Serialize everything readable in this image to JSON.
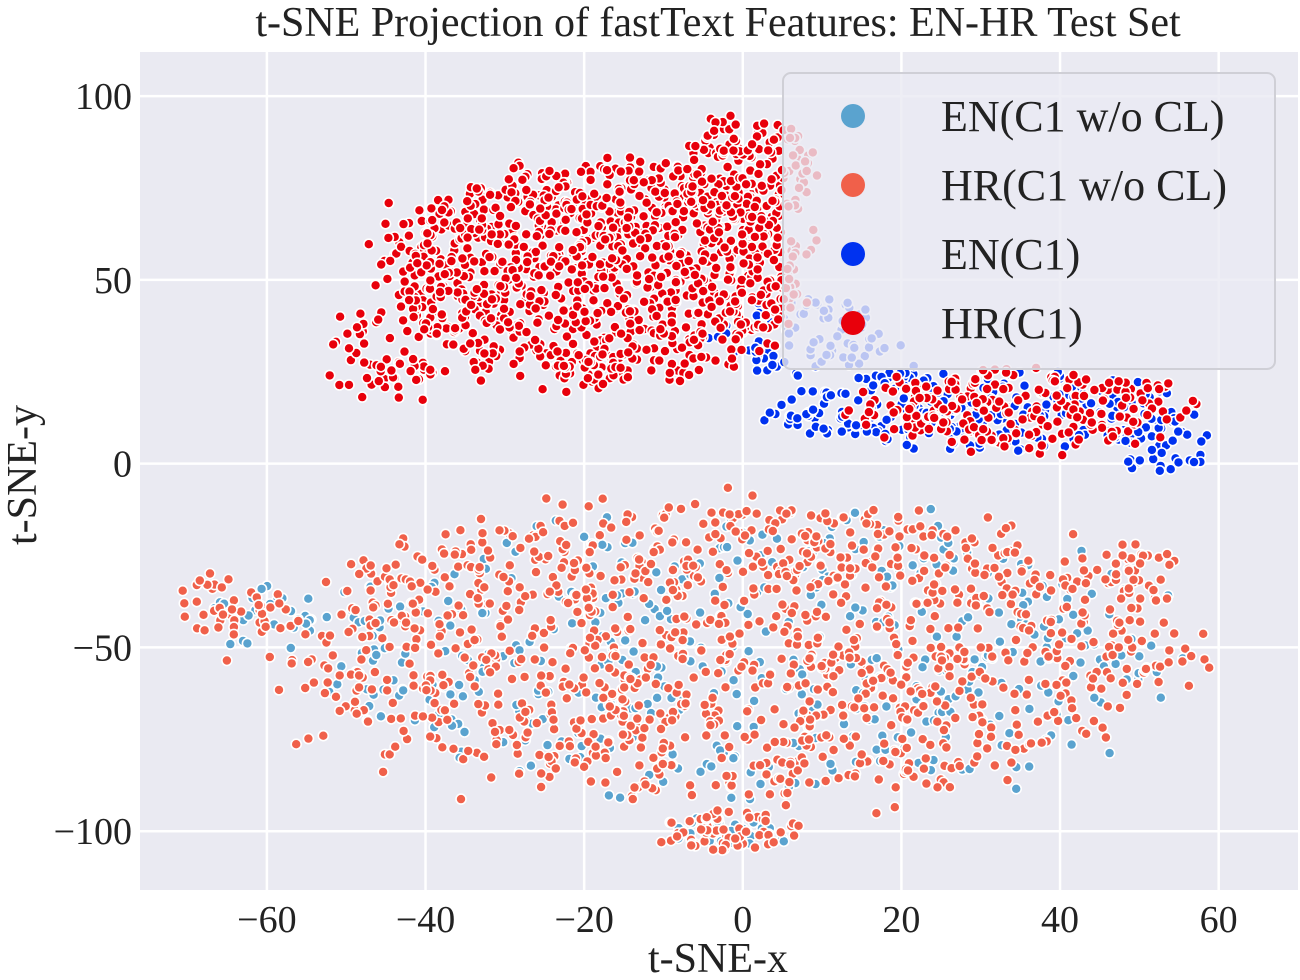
{
  "chart_data": {
    "type": "scatter",
    "title": "t-SNE Projection of fastText Features: EN-HR Test Set",
    "xlabel": "t-SNE-x",
    "ylabel": "t-SNE-y",
    "xlim": [
      -76,
      70
    ],
    "ylim": [
      -116,
      112
    ],
    "xticks": [
      -60,
      -40,
      -20,
      0,
      20,
      40,
      60
    ],
    "yticks": [
      -100,
      -50,
      0,
      50,
      100
    ],
    "xtick_labels": [
      "−60",
      "−40",
      "−20",
      "0",
      "20",
      "40",
      "60"
    ],
    "ytick_labels": [
      "−100",
      "−50",
      "0",
      "50",
      "100"
    ],
    "grid": true,
    "background": "#eaeaf2",
    "legend_position": "top-right",
    "series": [
      {
        "name": "EN(C1 w/o CL)",
        "color": "#5aa3cf",
        "approx_regions": [
          {
            "cx": 0,
            "cy": -52,
            "rx": 58,
            "ry": 42,
            "count": 480
          },
          {
            "cx": -2,
            "cy": -100,
            "rx": 8,
            "ry": 5,
            "count": 40
          },
          {
            "cx": -60,
            "cy": -42,
            "rx": 8,
            "ry": 10,
            "count": 30
          }
        ]
      },
      {
        "name": "HR(C1 w/o CL)",
        "color": "#f0604a",
        "approx_regions": [
          {
            "cx": -2,
            "cy": -50,
            "rx": 60,
            "ry": 44,
            "count": 1250
          },
          {
            "cx": -2,
            "cy": -100,
            "rx": 10,
            "ry": 6,
            "count": 60
          },
          {
            "cx": -64,
            "cy": -38,
            "rx": 8,
            "ry": 10,
            "count": 40
          },
          {
            "cx": 50,
            "cy": -30,
            "rx": 6,
            "ry": 10,
            "count": 30
          }
        ]
      },
      {
        "name": "EN(C1)",
        "color": "#0032f0",
        "approx_regions": [
          {
            "cx": 30,
            "cy": 15,
            "rx": 28,
            "ry": 12,
            "count": 260
          },
          {
            "cx": 8,
            "cy": 35,
            "rx": 12,
            "ry": 12,
            "count": 90
          },
          {
            "cx": 52,
            "cy": 5,
            "rx": 8,
            "ry": 8,
            "count": 50
          }
        ]
      },
      {
        "name": "HR(C1)",
        "color": "#e8000b",
        "approx_regions": [
          {
            "cx": -18,
            "cy": 52,
            "rx": 28,
            "ry": 32,
            "count": 1150
          },
          {
            "cx": 0,
            "cy": 80,
            "rx": 10,
            "ry": 16,
            "count": 170
          },
          {
            "cx": 35,
            "cy": 15,
            "rx": 24,
            "ry": 12,
            "count": 230
          },
          {
            "cx": -45,
            "cy": 30,
            "rx": 8,
            "ry": 14,
            "count": 60
          }
        ]
      }
    ],
    "legend": {
      "entries": [
        {
          "label": "EN(C1 w/o CL)",
          "color": "#5aa3cf"
        },
        {
          "label": "HR(C1 w/o CL)",
          "color": "#f0604a"
        },
        {
          "label": "EN(C1)",
          "color": "#0032f0"
        },
        {
          "label": "HR(C1)",
          "color": "#e8000b"
        }
      ]
    }
  }
}
